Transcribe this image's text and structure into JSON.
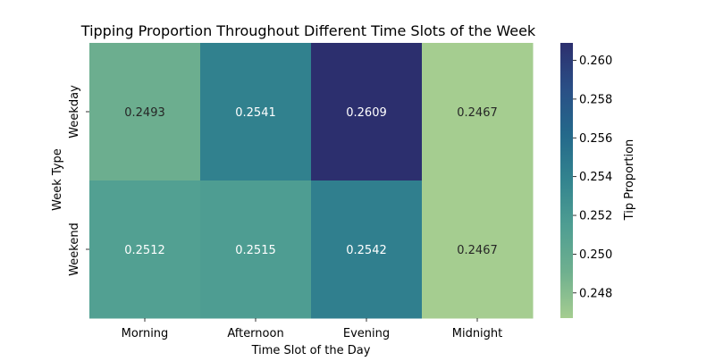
{
  "chart_data": {
    "type": "heatmap",
    "title": "Tipping Proportion Throughout Different Time Slots of the Week",
    "xlabel": "Time Slot of the Day",
    "ylabel": "Week Type",
    "x_categories": [
      "Morning",
      "Afternoon",
      "Evening",
      "Midnight"
    ],
    "y_categories": [
      "Weekday",
      "Weekend"
    ],
    "values": [
      [
        0.2493,
        0.2541,
        0.2609,
        0.2467
      ],
      [
        0.2512,
        0.2515,
        0.2542,
        0.2467
      ]
    ],
    "value_labels": [
      [
        "0.2493",
        "0.2541",
        "0.2609",
        "0.2467"
      ],
      [
        "0.2512",
        "0.2515",
        "0.2542",
        "0.2467"
      ]
    ],
    "colorbar": {
      "label": "Tip Proportion",
      "vmin": 0.2467,
      "vmax": 0.2609,
      "ticks": [
        0.248,
        0.25,
        0.252,
        0.254,
        0.256,
        0.258,
        0.26
      ],
      "tick_labels": [
        "0.248",
        "0.250",
        "0.252",
        "0.254",
        "0.256",
        "0.258",
        "0.260"
      ]
    },
    "colormap": "crest",
    "colormap_stops": [
      "#a5cd90",
      "#6fb08f",
      "#4f9e92",
      "#33848f",
      "#24698b",
      "#2a4f86",
      "#2c2f6e"
    ]
  }
}
